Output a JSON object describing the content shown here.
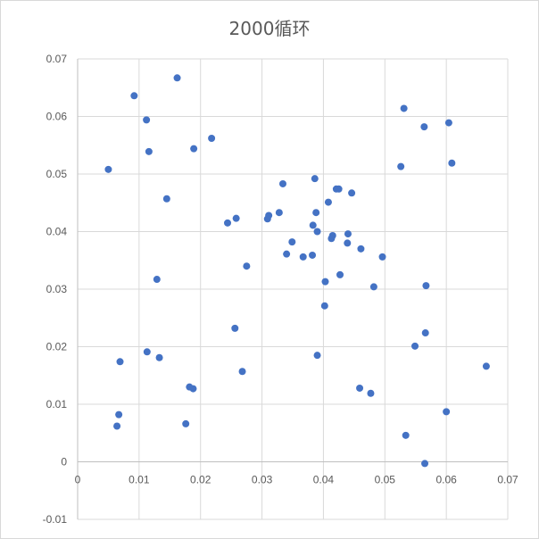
{
  "chart_data": {
    "type": "scatter",
    "title": "2000循环",
    "xlabel": "",
    "ylabel": "",
    "xlim": [
      0,
      0.07
    ],
    "ylim": [
      -0.01,
      0.07
    ],
    "x_ticks": [
      "0",
      "0.01",
      "0.02",
      "0.03",
      "0.04",
      "0.05",
      "0.06",
      "0.07"
    ],
    "y_ticks": [
      "-0.01",
      "0",
      "0.01",
      "0.02",
      "0.03",
      "0.04",
      "0.05",
      "0.06",
      "0.07"
    ],
    "grid": true,
    "legend": "none",
    "marker_color": "#4472C4",
    "points": [
      [
        0.0092,
        0.0636
      ],
      [
        0.0112,
        0.0594
      ],
      [
        0.0162,
        0.0667
      ],
      [
        0.005,
        0.0508
      ],
      [
        0.0116,
        0.0539
      ],
      [
        0.0218,
        0.0562
      ],
      [
        0.0189,
        0.0544
      ],
      [
        0.0145,
        0.0457
      ],
      [
        0.0244,
        0.0415
      ],
      [
        0.0258,
        0.0423
      ],
      [
        0.0309,
        0.0422
      ],
      [
        0.0311,
        0.0428
      ],
      [
        0.0328,
        0.0433
      ],
      [
        0.0334,
        0.0483
      ],
      [
        0.0386,
        0.0492
      ],
      [
        0.0388,
        0.0433
      ],
      [
        0.0383,
        0.0411
      ],
      [
        0.039,
        0.04
      ],
      [
        0.0408,
        0.0451
      ],
      [
        0.0421,
        0.0474
      ],
      [
        0.0425,
        0.0474
      ],
      [
        0.0446,
        0.0467
      ],
      [
        0.0349,
        0.0382
      ],
      [
        0.034,
        0.0361
      ],
      [
        0.0367,
        0.0356
      ],
      [
        0.0382,
        0.0359
      ],
      [
        0.0413,
        0.0388
      ],
      [
        0.0415,
        0.0393
      ],
      [
        0.044,
        0.0396
      ],
      [
        0.0439,
        0.038
      ],
      [
        0.0461,
        0.037
      ],
      [
        0.0496,
        0.0356
      ],
      [
        0.0275,
        0.034
      ],
      [
        0.0427,
        0.0325
      ],
      [
        0.0403,
        0.0313
      ],
      [
        0.0482,
        0.0304
      ],
      [
        0.0402,
        0.0271
      ],
      [
        0.0129,
        0.0317
      ],
      [
        0.0256,
        0.0232
      ],
      [
        0.0531,
        0.0614
      ],
      [
        0.0564,
        0.0582
      ],
      [
        0.0604,
        0.0589
      ],
      [
        0.0609,
        0.0519
      ],
      [
        0.0526,
        0.0513
      ],
      [
        0.0567,
        0.0306
      ],
      [
        0.0566,
        0.0224
      ],
      [
        0.0549,
        0.0201
      ],
      [
        0.039,
        0.0185
      ],
      [
        0.0113,
        0.0191
      ],
      [
        0.0133,
        0.0181
      ],
      [
        0.0069,
        0.0174
      ],
      [
        0.0268,
        0.0157
      ],
      [
        0.0182,
        0.013
      ],
      [
        0.0188,
        0.0127
      ],
      [
        0.0459,
        0.0128
      ],
      [
        0.0477,
        0.0119
      ],
      [
        0.0067,
        0.0082
      ],
      [
        0.0064,
        0.0062
      ],
      [
        0.0176,
        0.0066
      ],
      [
        0.06,
        0.0087
      ],
      [
        0.0534,
        0.0046
      ],
      [
        0.0565,
        -0.0003
      ],
      [
        0.0665,
        0.0166
      ]
    ]
  }
}
